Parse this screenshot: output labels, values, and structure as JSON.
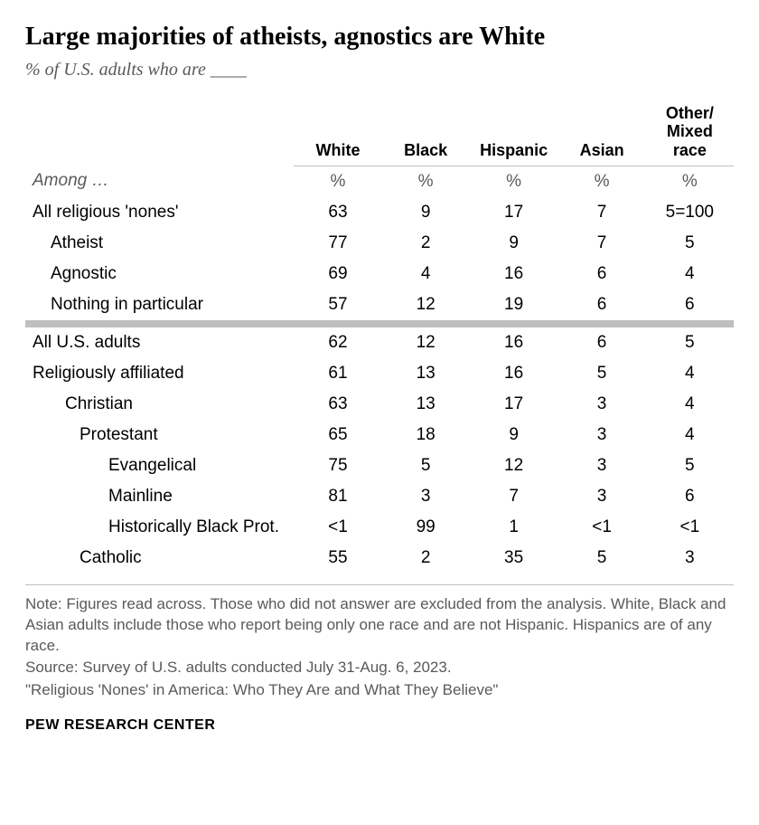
{
  "title": "Large majorities of atheists, agnostics are White",
  "subtitle": "% of U.S. adults who are ____",
  "columns": [
    "White",
    "Black",
    "Hispanic",
    "Asian",
    "Other/\nMixed race"
  ],
  "pct_symbol": "%",
  "among_label": "Among …",
  "section1": [
    {
      "label": "All religious 'nones'",
      "indent": 0,
      "vals": [
        "63",
        "9",
        "17",
        "7",
        "5=100"
      ]
    },
    {
      "label": "Atheist",
      "indent": 1,
      "vals": [
        "77",
        "2",
        "9",
        "7",
        "5"
      ]
    },
    {
      "label": "Agnostic",
      "indent": 1,
      "vals": [
        "69",
        "4",
        "16",
        "6",
        "4"
      ]
    },
    {
      "label": "Nothing in particular",
      "indent": 1,
      "vals": [
        "57",
        "12",
        "19",
        "6",
        "6"
      ]
    }
  ],
  "section2": [
    {
      "label": "All U.S. adults",
      "indent": 0,
      "vals": [
        "62",
        "12",
        "16",
        "6",
        "5"
      ]
    },
    {
      "label": "Religiously affiliated",
      "indent": 0,
      "vals": [
        "61",
        "13",
        "16",
        "5",
        "4"
      ]
    },
    {
      "label": "Christian",
      "indent": 2,
      "vals": [
        "63",
        "13",
        "17",
        "3",
        "4"
      ]
    },
    {
      "label": "Protestant",
      "indent": 3,
      "vals": [
        "65",
        "18",
        "9",
        "3",
        "4"
      ]
    },
    {
      "label": "Evangelical",
      "indent": 4,
      "vals": [
        "75",
        "5",
        "12",
        "3",
        "5"
      ]
    },
    {
      "label": "Mainline",
      "indent": 4,
      "vals": [
        "81",
        "3",
        "7",
        "3",
        "6"
      ]
    },
    {
      "label": "Historically Black Prot.",
      "indent": 4,
      "vals": [
        "<1",
        "99",
        "1",
        "<1",
        "<1"
      ]
    },
    {
      "label": "Catholic",
      "indent": 3,
      "vals": [
        "55",
        "2",
        "35",
        "5",
        "3"
      ]
    }
  ],
  "note": "Note: Figures read across. Those who did not answer are excluded from the analysis. White, Black and Asian adults include those who report being only one race and are not Hispanic. Hispanics are of any race.",
  "source": "Source: Survey of U.S. adults conducted July 31-Aug. 6, 2023.",
  "report": "\"Religious 'Nones' in America: Who They Are and What They Believe\"",
  "footer": "PEW RESEARCH CENTER",
  "colors": {
    "text": "#000000",
    "muted": "#5a5a5a",
    "divider": "#bfbfbf",
    "background": "#ffffff"
  },
  "fonts": {
    "title_family": "Georgia",
    "body_family": "Arial",
    "title_size_pt": 21,
    "subtitle_size_pt": 15,
    "table_size_pt": 14,
    "note_size_pt": 13
  }
}
